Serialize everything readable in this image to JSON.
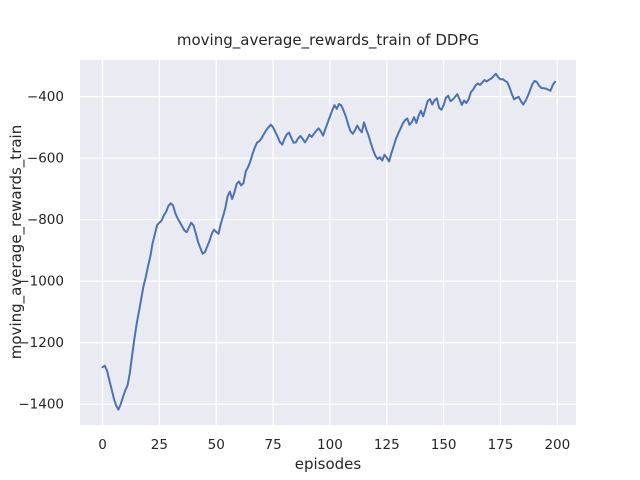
{
  "chart_data": {
    "type": "line",
    "title": "moving_average_rewards_train of DDPG",
    "xlabel": "episodes",
    "ylabel": "moving_average_rewards_train",
    "x_ticks": [
      0,
      25,
      50,
      75,
      100,
      125,
      150,
      175,
      200
    ],
    "x_tick_labels": [
      "0",
      "25",
      "50",
      "75",
      "100",
      "125",
      "150",
      "175",
      "200"
    ],
    "y_ticks": [
      -400,
      -600,
      -800,
      -1000,
      -1200,
      -1400
    ],
    "y_tick_labels": [
      "−400",
      "−600",
      "−800",
      "−1000",
      "−1200",
      "−1400"
    ],
    "xlim": [
      -9.9,
      208.2
    ],
    "ylim": [
      -1468,
      -281
    ],
    "grid": true,
    "legend_position": "none",
    "colors": {
      "figure_background": "#ffffff",
      "plot_background": "#eaeaf2",
      "gridline": "#ffffff",
      "text": "#262626",
      "line": "#4c72b0"
    },
    "series": [
      {
        "name": "moving_average_rewards_train",
        "color": "#4c72b0",
        "x_start": 0,
        "x_step": 1,
        "values": [
          -1280,
          -1275,
          -1292,
          -1322,
          -1352,
          -1382,
          -1405,
          -1418,
          -1400,
          -1377,
          -1355,
          -1340,
          -1300,
          -1242,
          -1188,
          -1140,
          -1100,
          -1058,
          -1018,
          -988,
          -952,
          -920,
          -878,
          -848,
          -818,
          -810,
          -803,
          -786,
          -774,
          -755,
          -747,
          -754,
          -779,
          -796,
          -808,
          -822,
          -835,
          -841,
          -826,
          -810,
          -819,
          -845,
          -872,
          -892,
          -911,
          -906,
          -888,
          -870,
          -847,
          -833,
          -840,
          -846,
          -814,
          -790,
          -763,
          -724,
          -709,
          -733,
          -712,
          -684,
          -676,
          -689,
          -681,
          -643,
          -629,
          -611,
          -586,
          -565,
          -549,
          -545,
          -535,
          -521,
          -509,
          -500,
          -491,
          -500,
          -516,
          -530,
          -548,
          -556,
          -538,
          -523,
          -517,
          -534,
          -550,
          -549,
          -536,
          -528,
          -537,
          -549,
          -538,
          -524,
          -531,
          -521,
          -511,
          -503,
          -513,
          -527,
          -505,
          -485,
          -465,
          -445,
          -428,
          -440,
          -424,
          -429,
          -446,
          -465,
          -490,
          -512,
          -521,
          -510,
          -494,
          -507,
          -516,
          -484,
          -507,
          -527,
          -552,
          -574,
          -593,
          -603,
          -597,
          -608,
          -589,
          -599,
          -611,
          -585,
          -562,
          -538,
          -520,
          -505,
          -488,
          -477,
          -471,
          -492,
          -483,
          -467,
          -486,
          -462,
          -446,
          -464,
          -440,
          -414,
          -408,
          -426,
          -412,
          -406,
          -436,
          -443,
          -428,
          -404,
          -397,
          -415,
          -410,
          -401,
          -392,
          -409,
          -427,
          -413,
          -421,
          -408,
          -386,
          -377,
          -364,
          -357,
          -362,
          -354,
          -346,
          -351,
          -345,
          -341,
          -333,
          -326,
          -337,
          -344,
          -343,
          -349,
          -353,
          -371,
          -392,
          -409,
          -404,
          -401,
          -415,
          -426,
          -414,
          -398,
          -379,
          -360,
          -349,
          -353,
          -365,
          -372,
          -373,
          -374,
          -378,
          -381,
          -362,
          -352
        ]
      }
    ]
  }
}
